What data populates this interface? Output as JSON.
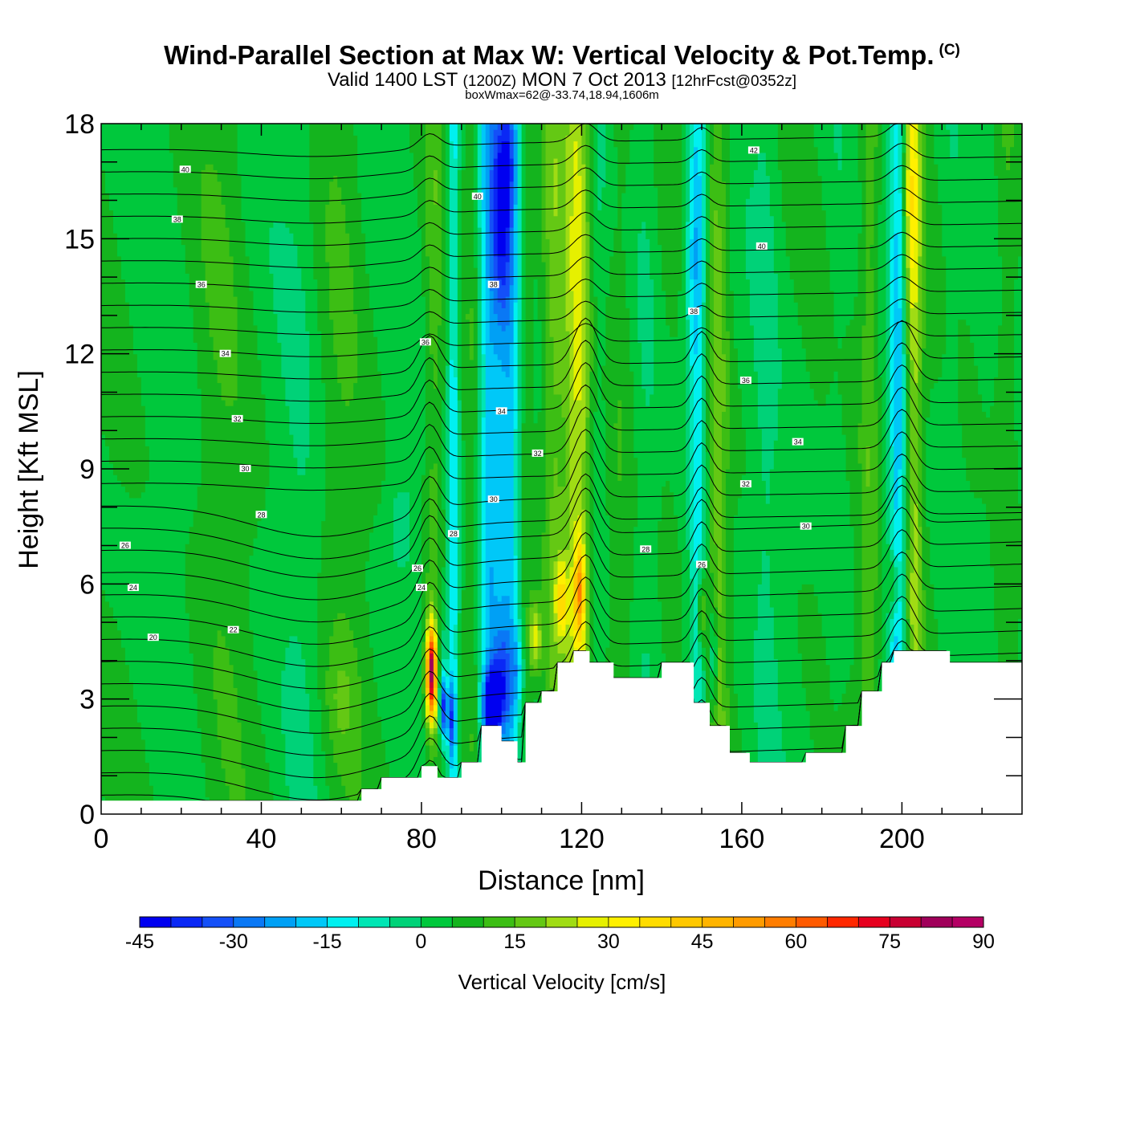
{
  "header": {
    "title": "Wind-Parallel Section at Max W: Vertical Velocity & Pot.Temp.",
    "copyright_mark": "(C)",
    "subtitle_prefix": "Valid 1400 LST",
    "subtitle_utc": "(1200Z)",
    "subtitle_date": "MON 7 Oct 2013",
    "subtitle_forecast": "[12hrFcst@0352z]",
    "box_info": "boxWmax=62@-33.74,18.94,1606m"
  },
  "chart_data": {
    "type": "heatmap",
    "title": "Wind-Parallel Section at Max W: Vertical Velocity & Pot.Temp.",
    "xlabel": "Distance [nm]",
    "ylabel": "Height [Kft MSL]",
    "xlim": [
      0,
      230
    ],
    "ylim": [
      0,
      18
    ],
    "x_ticks": [
      "0",
      "40",
      "80",
      "120",
      "160",
      "200"
    ],
    "x_tick_values": [
      0,
      40,
      80,
      120,
      160,
      200
    ],
    "y_ticks": [
      "0",
      "3",
      "6",
      "9",
      "12",
      "15",
      "18"
    ],
    "y_tick_values": [
      0,
      3,
      6,
      9,
      12,
      15,
      18
    ],
    "colorbar": {
      "title": "Vertical Velocity [cm/s]",
      "min": -45,
      "max": 90,
      "step": 5,
      "labels": [
        "-45",
        "-30",
        "-15",
        "0",
        "15",
        "30",
        "45",
        "60",
        "75",
        "90"
      ],
      "colors": [
        "#0000f0",
        "#0a28f5",
        "#1450f8",
        "#0a78f5",
        "#00a0f5",
        "#00c8f8",
        "#00f0f0",
        "#00e6b4",
        "#00d278",
        "#00c83c",
        "#14b41e",
        "#3cbe14",
        "#64c814",
        "#a0dc14",
        "#e6f000",
        "#fff000",
        "#ffdc00",
        "#ffc800",
        "#ffb400",
        "#ff9b00",
        "#ff7d00",
        "#ff5a00",
        "#ff2800",
        "#e6001e",
        "#c80032",
        "#a0005a",
        "#b40064"
      ]
    },
    "terrain": [
      [
        0,
        0.35
      ],
      [
        65,
        0.35
      ],
      [
        65,
        0.65
      ],
      [
        70,
        0.65
      ],
      [
        70,
        0.95
      ],
      [
        80,
        0.95
      ],
      [
        80,
        1.25
      ],
      [
        84,
        1.25
      ],
      [
        84,
        0.95
      ],
      [
        90,
        0.95
      ],
      [
        90,
        1.35
      ],
      [
        95,
        1.35
      ],
      [
        95,
        2.3
      ],
      [
        100,
        2.3
      ],
      [
        100,
        1.9
      ],
      [
        104,
        1.9
      ],
      [
        104,
        1.35
      ],
      [
        106,
        1.35
      ],
      [
        106,
        2.9
      ],
      [
        110,
        2.9
      ],
      [
        110,
        3.2
      ],
      [
        114,
        3.2
      ],
      [
        114,
        3.95
      ],
      [
        118,
        3.95
      ],
      [
        118,
        4.25
      ],
      [
        122,
        4.25
      ],
      [
        122,
        3.95
      ],
      [
        128,
        3.95
      ],
      [
        128,
        3.55
      ],
      [
        140,
        3.55
      ],
      [
        140,
        3.95
      ],
      [
        148,
        3.95
      ],
      [
        148,
        2.9
      ],
      [
        152,
        2.9
      ],
      [
        152,
        2.3
      ],
      [
        157,
        2.3
      ],
      [
        157,
        1.6
      ],
      [
        162,
        1.6
      ],
      [
        162,
        1.35
      ],
      [
        176,
        1.35
      ],
      [
        176,
        1.6
      ],
      [
        186,
        1.6
      ],
      [
        186,
        2.3
      ],
      [
        190,
        2.3
      ],
      [
        190,
        3.2
      ],
      [
        195,
        3.2
      ],
      [
        195,
        3.95
      ],
      [
        198,
        3.95
      ],
      [
        198,
        4.25
      ],
      [
        212,
        4.25
      ],
      [
        212,
        3.95
      ],
      [
        230,
        3.95
      ]
    ],
    "velocity_features": [
      {
        "x": 82,
        "y": 3.5,
        "value": 76
      },
      {
        "x": 86,
        "y": 3.0,
        "value": -35
      },
      {
        "x": 98,
        "y": 3.0,
        "value": -45
      },
      {
        "x": 100,
        "y": 15.0,
        "value": -25
      },
      {
        "x": 119,
        "y": 5.8,
        "value": 32
      },
      {
        "x": 148,
        "y": 14.0,
        "value": -20
      },
      {
        "x": 202,
        "y": 16.5,
        "value": 25
      }
    ],
    "contour_labels": [
      {
        "label": "40",
        "x": 21,
        "y": 16.8
      },
      {
        "label": "38",
        "x": 19,
        "y": 15.5
      },
      {
        "label": "36",
        "x": 25,
        "y": 13.8
      },
      {
        "label": "34",
        "x": 31,
        "y": 12.0
      },
      {
        "label": "32",
        "x": 34,
        "y": 10.3
      },
      {
        "label": "30",
        "x": 36,
        "y": 9.0
      },
      {
        "label": "28",
        "x": 40,
        "y": 7.8
      },
      {
        "label": "26",
        "x": 6,
        "y": 7.0
      },
      {
        "label": "24",
        "x": 8,
        "y": 5.9
      },
      {
        "label": "22",
        "x": 33,
        "y": 4.8
      },
      {
        "label": "20",
        "x": 13,
        "y": 4.6
      },
      {
        "label": "40",
        "x": 94,
        "y": 16.1
      },
      {
        "label": "38",
        "x": 98,
        "y": 13.8
      },
      {
        "label": "36",
        "x": 81,
        "y": 12.3
      },
      {
        "label": "34",
        "x": 100,
        "y": 10.5
      },
      {
        "label": "32",
        "x": 109,
        "y": 9.4
      },
      {
        "label": "30",
        "x": 98,
        "y": 8.2
      },
      {
        "label": "28",
        "x": 88,
        "y": 7.3
      },
      {
        "label": "26",
        "x": 79,
        "y": 6.4
      },
      {
        "label": "24",
        "x": 80,
        "y": 5.9
      },
      {
        "label": "42",
        "x": 163,
        "y": 17.3
      },
      {
        "label": "40",
        "x": 165,
        "y": 14.8
      },
      {
        "label": "38",
        "x": 148,
        "y": 13.1
      },
      {
        "label": "36",
        "x": 161,
        "y": 11.3
      },
      {
        "label": "34",
        "x": 174,
        "y": 9.7
      },
      {
        "label": "32",
        "x": 161,
        "y": 8.6
      },
      {
        "label": "30",
        "x": 176,
        "y": 7.5
      },
      {
        "label": "28",
        "x": 136,
        "y": 6.9
      },
      {
        "label": "26",
        "x": 150,
        "y": 6.5
      }
    ]
  }
}
